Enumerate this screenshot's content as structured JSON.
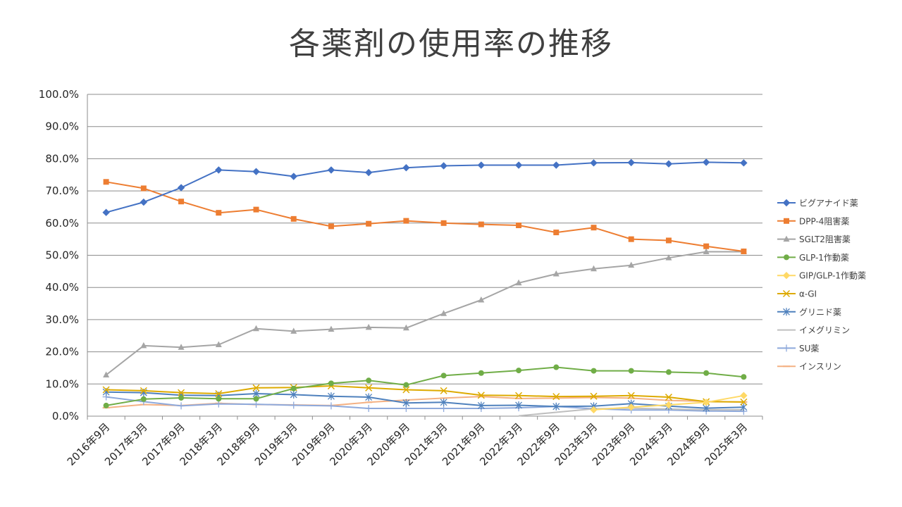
{
  "chart_data": {
    "type": "line",
    "title": "各薬剤の使用率の推移",
    "xlabel": "",
    "ylabel": "",
    "ylim": [
      0,
      100
    ],
    "y_tick_labels": [
      "0.0%",
      "10.0%",
      "20.0%",
      "30.0%",
      "40.0%",
      "50.0%",
      "60.0%",
      "70.0%",
      "80.0%",
      "90.0%",
      "100.0%"
    ],
    "categories": [
      "2016年9月",
      "2017年3月",
      "2017年9月",
      "2018年3月",
      "2018年9月",
      "2019年3月",
      "2019年9月",
      "2020年3月",
      "2020年9月",
      "2021年3月",
      "2021年9月",
      "2022年3月",
      "2022年9月",
      "2023年3月",
      "2023年9月",
      "2024年3月",
      "2024年9月",
      "2025年3月"
    ],
    "grid": true,
    "legend_position": "right",
    "series": [
      {
        "name": "ビグアナイド薬",
        "color": "#4472C4",
        "marker": "diamond",
        "values": [
          63.3,
          66.5,
          71.0,
          76.5,
          76.0,
          74.5,
          76.5,
          75.7,
          77.2,
          77.8,
          78.0,
          78.0,
          78.0,
          78.7,
          78.8,
          78.4,
          78.9,
          78.7
        ]
      },
      {
        "name": "DPP-4阻害薬",
        "color": "#ED7D31",
        "marker": "square",
        "values": [
          72.8,
          70.8,
          66.7,
          63.2,
          64.2,
          61.3,
          59.0,
          59.8,
          60.7,
          60.0,
          59.6,
          59.3,
          57.1,
          58.6,
          55.0,
          54.6,
          52.8,
          51.2
        ]
      },
      {
        "name": "SGLT2阻害薬",
        "color": "#A5A5A5",
        "marker": "triangle",
        "values": [
          12.8,
          21.9,
          21.4,
          22.2,
          27.2,
          26.4,
          27.0,
          27.6,
          27.4,
          31.9,
          36.1,
          41.4,
          44.2,
          45.8,
          46.9,
          49.2,
          51.1,
          51.1
        ]
      },
      {
        "name": "GLP-1作動薬",
        "color": "#70AD47",
        "marker": "circle",
        "values": [
          3.3,
          5.3,
          5.7,
          5.4,
          5.4,
          8.6,
          10.2,
          11.1,
          9.7,
          12.6,
          13.4,
          14.2,
          15.2,
          14.1,
          14.1,
          13.7,
          13.4,
          12.2
        ]
      },
      {
        "name": "GIP/GLP-1作動薬",
        "color": "#FFC000",
        "marker": "diamond",
        "lightColor": "#FFD966",
        "x_start": 13,
        "values": [
          null,
          null,
          null,
          null,
          null,
          null,
          null,
          null,
          null,
          null,
          null,
          null,
          null,
          2.0,
          2.8,
          3.5,
          4.3,
          6.4
        ]
      },
      {
        "name": "α-GI",
        "color": "#DDAA00",
        "marker": "x",
        "values": [
          8.2,
          7.9,
          7.3,
          7.0,
          8.8,
          8.9,
          9.4,
          8.8,
          8.2,
          7.9,
          6.5,
          6.4,
          6.1,
          6.2,
          6.4,
          5.9,
          4.5,
          4.4
        ]
      },
      {
        "name": "グリニド薬",
        "color": "#4F81BD",
        "marker": "asterisk",
        "values": [
          7.5,
          7.3,
          6.5,
          6.4,
          7.0,
          6.7,
          6.2,
          5.9,
          4.1,
          4.3,
          3.3,
          3.4,
          3.0,
          3.1,
          3.9,
          3.1,
          2.5,
          2.8
        ]
      },
      {
        "name": "イメグリミン",
        "color": "#BFBFBF",
        "marker": "none",
        "values": [
          null,
          null,
          null,
          null,
          null,
          null,
          null,
          null,
          null,
          null,
          null,
          0.1,
          1.2,
          2.3,
          2.5,
          2.2,
          2.0,
          2.0
        ]
      },
      {
        "name": "SU薬",
        "color": "#8EA9DB",
        "marker": "plus",
        "values": [
          6.0,
          4.5,
          3.2,
          3.8,
          3.7,
          3.4,
          3.2,
          2.4,
          2.4,
          2.4,
          2.4,
          2.6,
          3.0,
          2.3,
          1.9,
          1.9,
          1.6,
          1.5
        ]
      },
      {
        "name": "インスリン",
        "color": "#F4B183",
        "marker": "dash",
        "values": [
          2.6,
          3.6,
          3.3,
          4.0,
          3.6,
          3.5,
          3.3,
          4.3,
          5.0,
          5.6,
          6.1,
          5.5,
          5.6,
          5.8,
          5.6,
          4.9,
          4.6,
          4.4
        ]
      }
    ]
  }
}
